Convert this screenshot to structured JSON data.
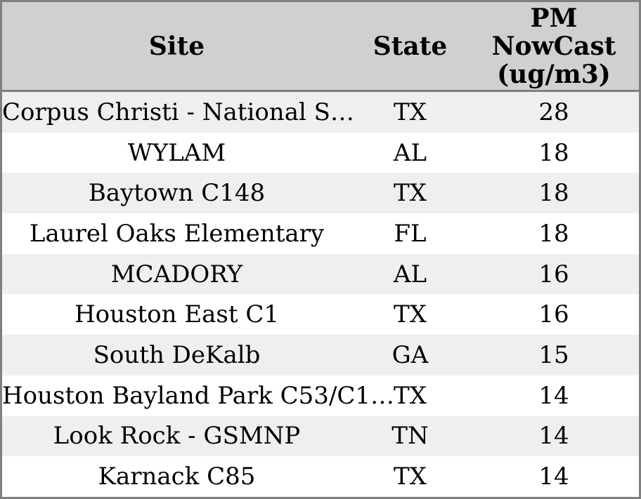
{
  "colors": {
    "frame_border": "#7f7f7f",
    "header_background": "#d0d0d0",
    "row_alternate_background": "#efefef",
    "row_background": "#ffffff",
    "text": "#000000"
  },
  "chart_data": {
    "type": "table",
    "columns": [
      "Site",
      "State",
      "PM NowCast (ug/m3)"
    ],
    "rows": [
      [
        "Corpus Christi - National S…",
        "TX",
        28
      ],
      [
        "WYLAM",
        "AL",
        18
      ],
      [
        "Baytown C148",
        "TX",
        18
      ],
      [
        "Laurel Oaks Elementary",
        "FL",
        18
      ],
      [
        "MCADORY",
        "AL",
        16
      ],
      [
        "Houston East C1",
        "TX",
        16
      ],
      [
        "South DeKalb",
        "GA",
        15
      ],
      [
        "Houston Bayland Park C53/C1…",
        "TX",
        14
      ],
      [
        "Look Rock - GSMNP",
        "TN",
        14
      ],
      [
        "Karnack C85",
        "TX",
        14
      ]
    ]
  }
}
